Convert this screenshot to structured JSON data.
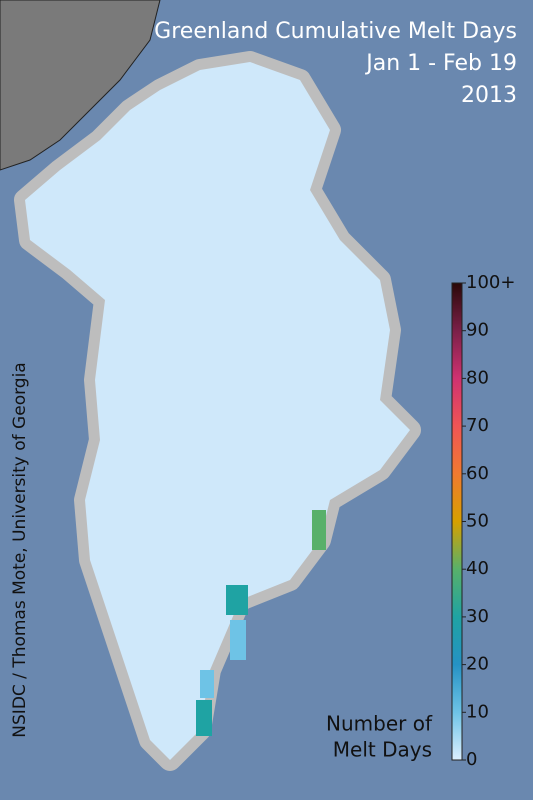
{
  "title_lines": [
    "Greenland Cumulative Melt Days",
    "Jan 1 - Feb 19",
    "2013"
  ],
  "colorbar": {
    "title_lines": [
      "Number of",
      "Melt Days"
    ],
    "range": [
      0,
      100
    ],
    "ticks": [
      0,
      10,
      20,
      30,
      40,
      50,
      60,
      70,
      80,
      90,
      {
        "value": 100,
        "label": "100+"
      }
    ]
  },
  "credit": "NSIDC / Thomas Mote, University of Georgia"
}
